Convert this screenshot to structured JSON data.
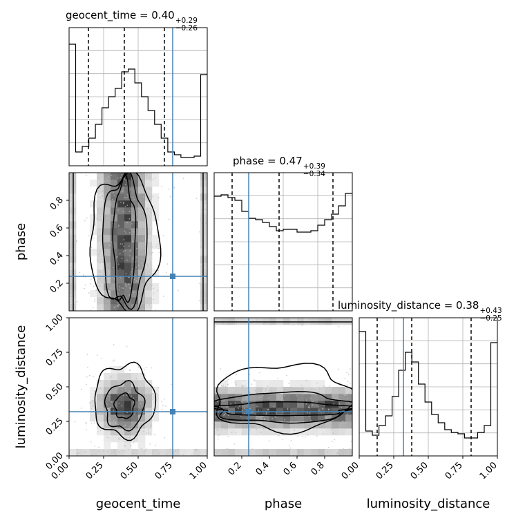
{
  "chart_data": {
    "type": "corner",
    "parameters": [
      "geocent_time",
      "phase",
      "luminosity_distance"
    ],
    "ranges": {
      "geocent_time": [
        0,
        1
      ],
      "phase": [
        0,
        1
      ],
      "luminosity_distance": [
        0,
        1
      ]
    },
    "truth": {
      "geocent_time": 0.75,
      "phase": 0.25,
      "luminosity_distance": 0.32,
      "color": "#4682b4"
    },
    "titles": [
      {
        "param": "geocent_time",
        "prefix": "geocent_time = ",
        "value": "0.40",
        "plus": "+0.29",
        "minus": "−0.26"
      },
      {
        "param": "phase",
        "prefix": "phase = ",
        "value": "0.47",
        "plus": "+0.39",
        "minus": "−0.34"
      },
      {
        "param": "luminosity_distance",
        "prefix": "luminosity_distance = ",
        "value": "0.38",
        "plus": "+0.43",
        "minus": "−0.25"
      }
    ],
    "histograms": {
      "geocent_time": {
        "quantiles": [
          0.14,
          0.4,
          0.69
        ],
        "counts": [
          0.88,
          0.1,
          0.14,
          0.2,
          0.3,
          0.42,
          0.5,
          0.56,
          0.68,
          0.7,
          0.6,
          0.5,
          0.4,
          0.3,
          0.2,
          0.1,
          0.08,
          0.06,
          0.06,
          0.07,
          0.66
        ]
      },
      "phase": {
        "quantiles": [
          0.13,
          0.47,
          0.86
        ],
        "counts": [
          0.83,
          0.84,
          0.82,
          0.8,
          0.72,
          0.67,
          0.66,
          0.64,
          0.61,
          0.58,
          0.59,
          0.59,
          0.57,
          0.57,
          0.58,
          0.62,
          0.66,
          0.7,
          0.76,
          0.85
        ]
      },
      "luminosity_distance": {
        "quantiles": [
          0.13,
          0.38,
          0.81
        ],
        "counts": [
          0.9,
          0.18,
          0.15,
          0.22,
          0.29,
          0.43,
          0.62,
          0.75,
          0.68,
          0.52,
          0.39,
          0.3,
          0.24,
          0.19,
          0.17,
          0.16,
          0.13,
          0.13,
          0.17,
          0.22,
          0.82
        ]
      }
    },
    "ticks": {
      "geocent_time": [
        "0.00",
        "0.25",
        "0.50",
        "0.75",
        "1.00"
      ],
      "phase": [
        "0.2",
        "0.4",
        "0.6",
        "0.8"
      ],
      "luminosity_distance": [
        "0.00",
        "0.25",
        "0.50",
        "0.75",
        "1.00"
      ]
    },
    "xlabels": [
      "geocent_time",
      "phase",
      "luminosity_distance"
    ],
    "ylabels": [
      "phase",
      "luminosity_distance"
    ],
    "grid": true,
    "contour_color": "#000000",
    "colors": {
      "quantile_line": "#000000",
      "grid": "#b0b0b0",
      "scatter": "#bbbbbb"
    }
  }
}
